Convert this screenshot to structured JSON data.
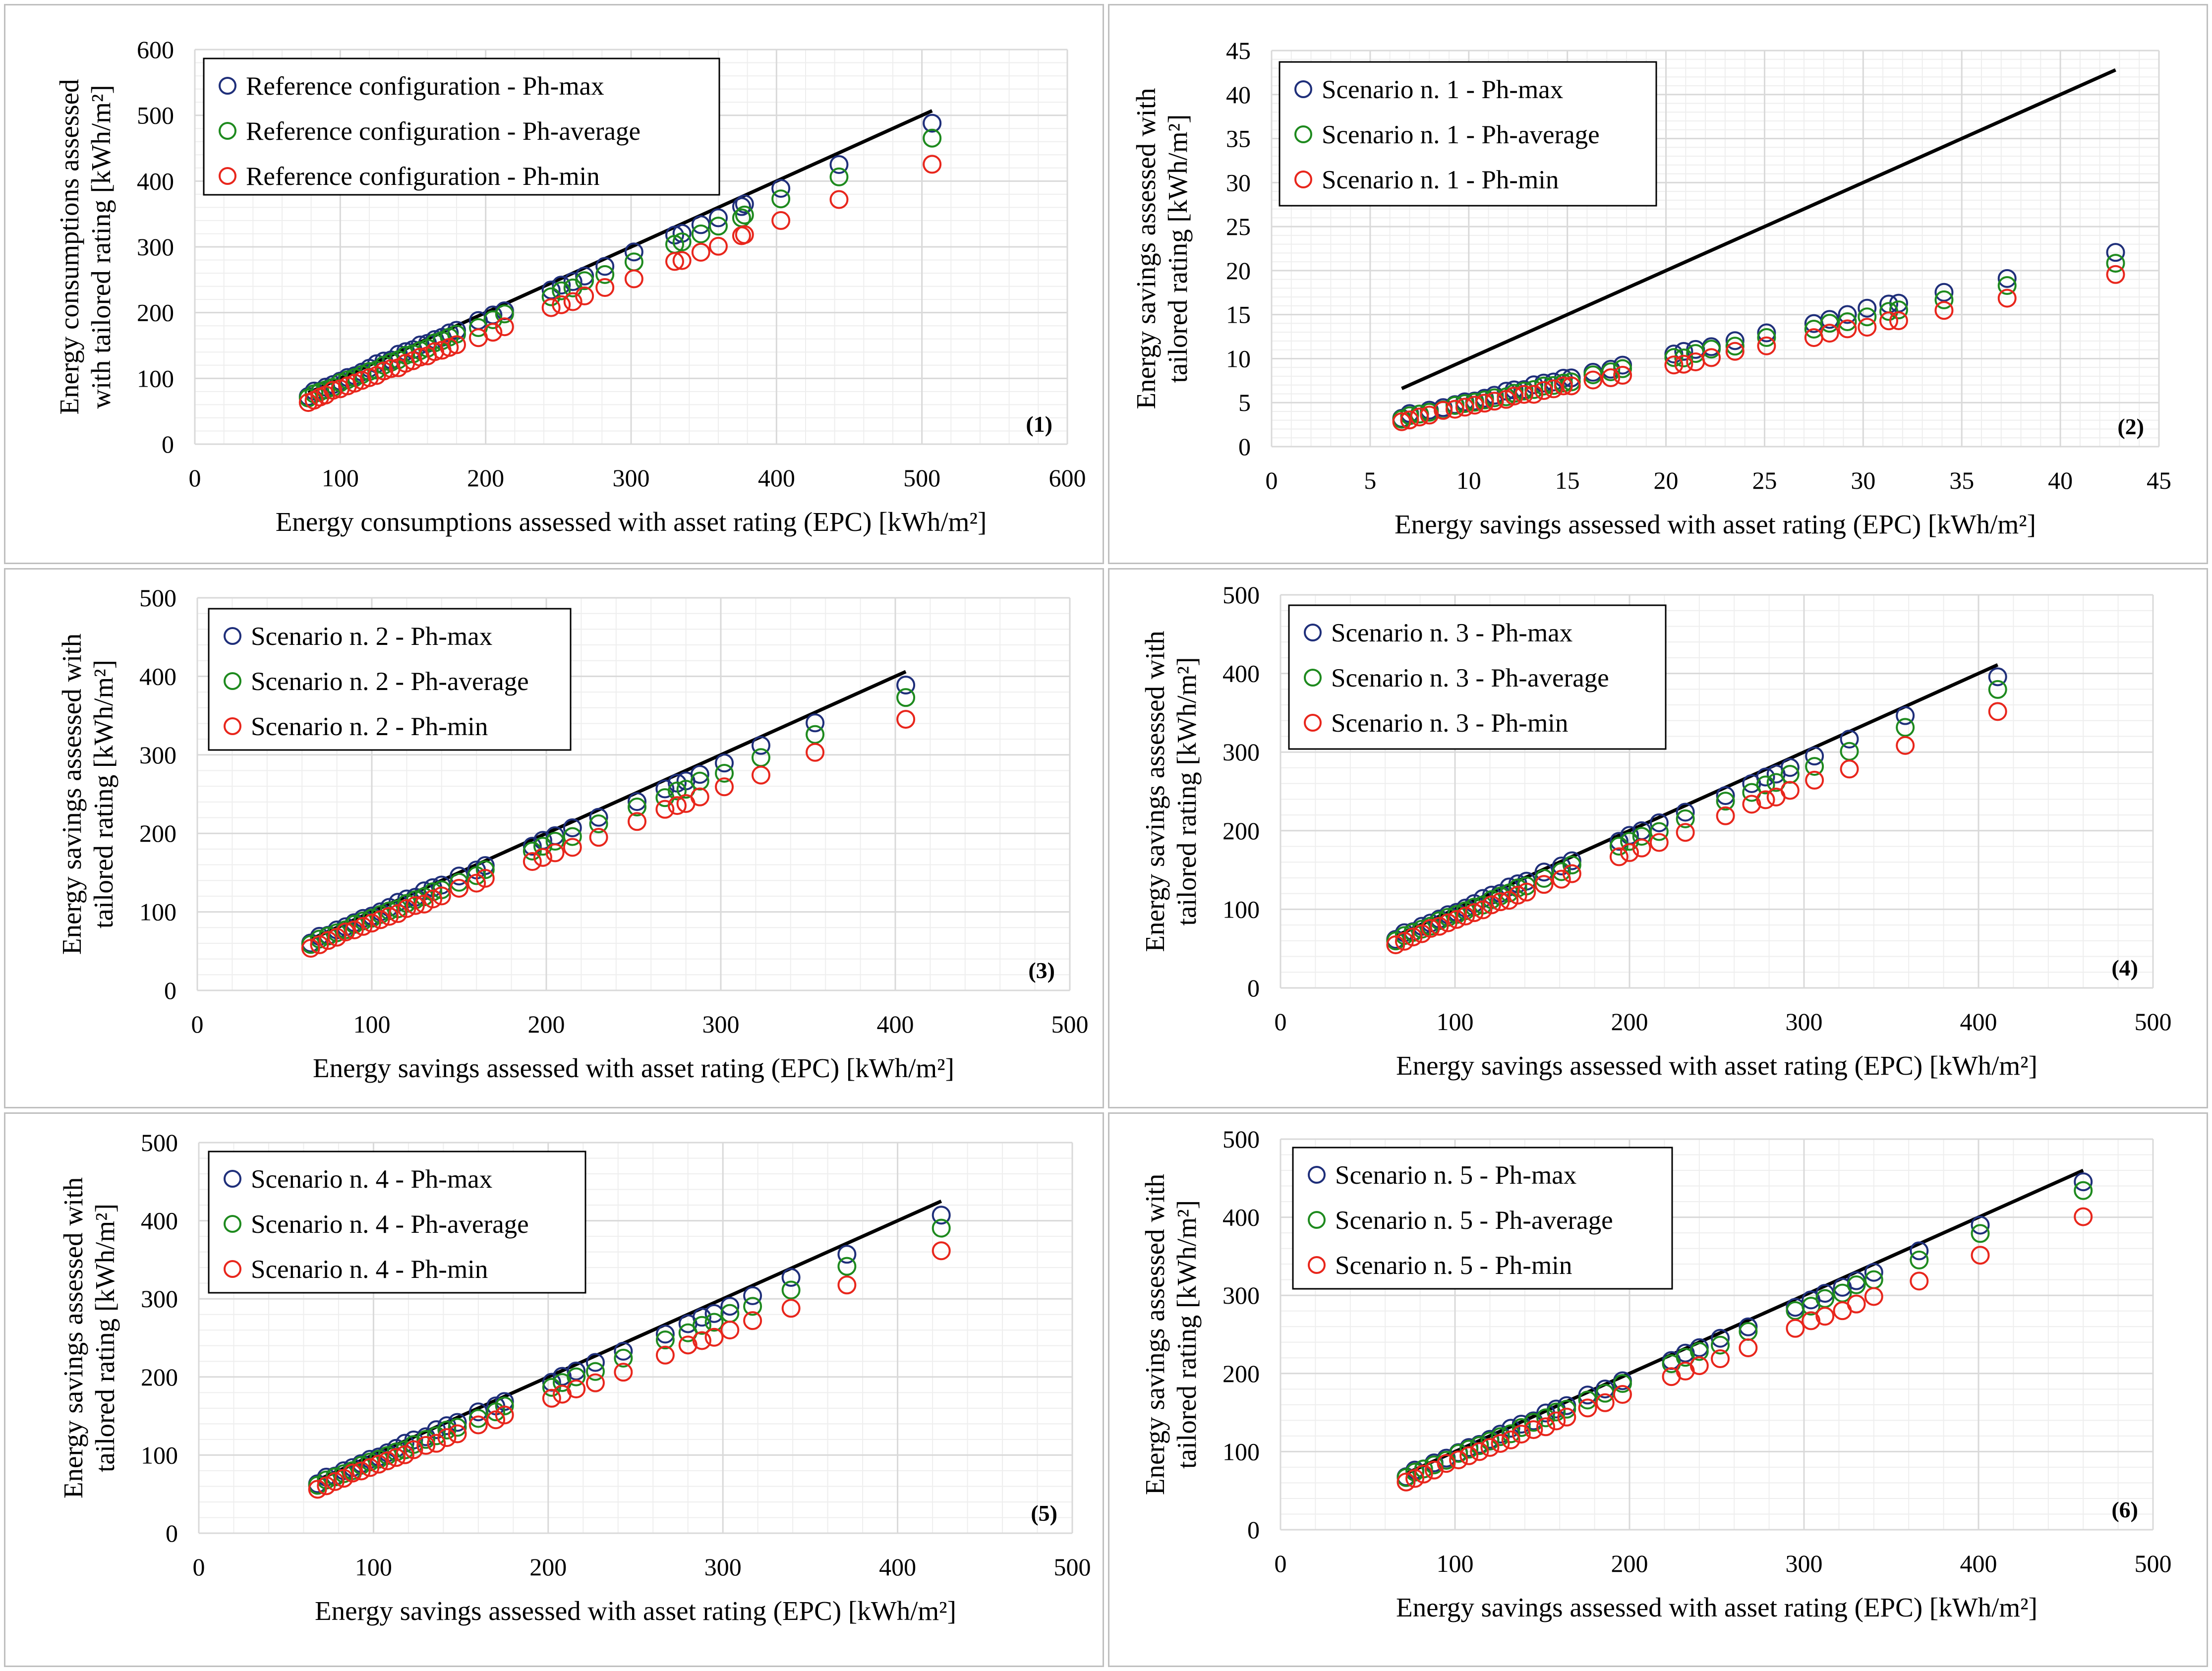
{
  "colors": {
    "max": "#1f2f7a",
    "avg": "#1e8a1e",
    "min": "#e8261c",
    "line": "#000000",
    "grid": "#d9d9d9",
    "minorgrid": "#eeeeee"
  },
  "chart_data": [
    {
      "type": "scatter",
      "id": "p1",
      "number": "(1)",
      "xlabel": "Energy consumptions assessed with asset rating (EPC) [kWh/m²]",
      "ylabel_lines": [
        "Energy consumptions assessed",
        "with tailored rating [kWh/m²]"
      ],
      "xlim": [
        0,
        600
      ],
      "ylim": [
        0,
        600
      ],
      "xticks": [
        0,
        100,
        200,
        300,
        400,
        500,
        600
      ],
      "yticks": [
        0,
        100,
        200,
        300,
        400,
        500,
        600
      ],
      "xtick_labels": [
        "0",
        "100",
        "200",
        "300",
        "400",
        "500",
        "600"
      ],
      "ytick_labels": [
        "0",
        "100",
        "200",
        "300",
        "400",
        "500",
        "600"
      ],
      "line": [
        [
          78,
          78
        ],
        [
          507,
          507
        ]
      ],
      "x": [
        78,
        82,
        86,
        90,
        95,
        100,
        105,
        110,
        115,
        120,
        125,
        130,
        135,
        140,
        145,
        150,
        155,
        160,
        165,
        170,
        175,
        180,
        195,
        205,
        213,
        245,
        252,
        260,
        268,
        282,
        302,
        330,
        335,
        348,
        360,
        376,
        378,
        403,
        443,
        507
      ],
      "series": [
        {
          "name": "Reference configuration -  Ph-max",
          "color_key": "max",
          "factor": 0.96
        },
        {
          "name": "Reference configuration -  Ph-average",
          "color_key": "avg",
          "factor": 0.92
        },
        {
          "name": "Reference configuration -  Ph-min",
          "color_key": "min",
          "factor": 0.84
        }
      ]
    },
    {
      "type": "scatter",
      "id": "p2",
      "number": "(2)",
      "xlabel": "Energy savings assessed with asset rating (EPC) [kWh/m²]",
      "ylabel_lines": [
        "Energy savings assessed with",
        "tailored rating [kWh/m²]"
      ],
      "xlim": [
        0,
        45
      ],
      "ylim": [
        0,
        45
      ],
      "xticks": [
        0,
        5,
        10,
        15,
        20,
        25,
        30,
        35,
        40,
        45
      ],
      "yticks": [
        0,
        5,
        10,
        15,
        20,
        25,
        30,
        35,
        40,
        45
      ],
      "xtick_labels": [
        "0",
        "5",
        "10",
        "15",
        "20",
        "25",
        "30",
        "35",
        "40",
        "45"
      ],
      "ytick_labels": [
        "0",
        "5",
        "10",
        "15",
        "20",
        "25",
        "30",
        "35",
        "40",
        "45"
      ],
      "line": [
        [
          6.6,
          6.6
        ],
        [
          42.8,
          42.8
        ]
      ],
      "x": [
        6.6,
        7.0,
        7.5,
        8.0,
        8.7,
        9.3,
        9.8,
        10.3,
        10.8,
        11.3,
        11.9,
        12.3,
        12.8,
        13.3,
        13.8,
        14.3,
        14.8,
        15.2,
        16.3,
        17.2,
        17.8,
        20.4,
        20.9,
        21.5,
        22.3,
        23.5,
        25.1,
        27.5,
        28.3,
        29.2,
        30.2,
        31.3,
        31.8,
        34.1,
        37.3,
        42.8
      ],
      "series": [
        {
          "name": "Scenario n. 1 -  Ph-max",
          "color_key": "max",
          "factor": 0.515
        },
        {
          "name": "Scenario n. 1 -  Ph-average",
          "color_key": "avg",
          "factor": 0.49
        },
        {
          "name": "Scenario n. 1 -  Ph-min",
          "color_key": "min",
          "factor": 0.455
        }
      ]
    },
    {
      "type": "scatter",
      "id": "p3",
      "number": "(3)",
      "xlabel": "Energy savings assessed with asset rating (EPC) [kWh/m²]",
      "ylabel_lines": [
        "Energy savings assessed with",
        "tailored rating [kWh/m²]"
      ],
      "xlim": [
        0,
        500
      ],
      "ylim": [
        0,
        500
      ],
      "xticks": [
        0,
        100,
        200,
        300,
        400,
        500
      ],
      "yticks": [
        0,
        100,
        200,
        300,
        400,
        500
      ],
      "xtick_labels": [
        "0",
        "100",
        "200",
        "300",
        "400",
        "500"
      ],
      "ytick_labels": [
        "0",
        "100",
        "200",
        "300",
        "400",
        "500"
      ],
      "line": [
        [
          65,
          65
        ],
        [
          406,
          406
        ]
      ],
      "x": [
        65,
        70,
        75,
        80,
        85,
        90,
        95,
        100,
        105,
        110,
        115,
        120,
        125,
        130,
        135,
        140,
        150,
        160,
        165,
        192,
        198,
        205,
        215,
        230,
        252,
        268,
        275,
        280,
        288,
        302,
        323,
        354,
        406
      ],
      "series": [
        {
          "name": "Scenario n. 2 -  Ph-max",
          "color_key": "max",
          "factor": 0.96
        },
        {
          "name": "Scenario n. 2 -  Ph-average",
          "color_key": "avg",
          "factor": 0.92
        },
        {
          "name": "Scenario n. 2 -  Ph-min",
          "color_key": "min",
          "factor": 0.855
        }
      ]
    },
    {
      "type": "scatter",
      "id": "p4",
      "number": "(4)",
      "xlabel": "Energy savings assessed with asset rating (EPC) [kWh/m²]",
      "ylabel_lines": [
        "Energy savings assessed with",
        "tailored rating [kWh/m²]"
      ],
      "xlim": [
        0,
        500
      ],
      "ylim": [
        0,
        500
      ],
      "xticks": [
        0,
        100,
        200,
        300,
        400,
        500
      ],
      "yticks": [
        0,
        100,
        200,
        300,
        400,
        500
      ],
      "xtick_labels": [
        "0",
        "100",
        "200",
        "300",
        "400",
        "500"
      ],
      "ytick_labels": [
        "0",
        "100",
        "200",
        "300",
        "400",
        "500"
      ],
      "line": [
        [
          66,
          66
        ],
        [
          411,
          411
        ]
      ],
      "x": [
        66,
        71,
        76,
        81,
        86,
        91,
        96,
        101,
        106,
        111,
        116,
        121,
        126,
        131,
        136,
        141,
        151,
        161,
        167,
        194,
        200,
        207,
        217,
        232,
        255,
        270,
        278,
        284,
        292,
        306,
        326,
        358,
        411
      ],
      "series": [
        {
          "name": "Scenario n. 3 -  Ph-max",
          "color_key": "max",
          "factor": 0.965
        },
        {
          "name": "Scenario n. 3 -  Ph-average",
          "color_key": "avg",
          "factor": 0.925
        },
        {
          "name": "Scenario n. 3 -  Ph-min",
          "color_key": "min",
          "factor": 0.86
        }
      ]
    },
    {
      "type": "scatter",
      "id": "p5",
      "number": "(5)",
      "xlabel": "Energy savings assessed with asset rating (EPC) [kWh/m²]",
      "ylabel_lines": [
        "Energy savings assessed with",
        "tailored rating [kWh/m²]"
      ],
      "xlim": [
        0,
        500
      ],
      "ylim": [
        0,
        500
      ],
      "xticks": [
        0,
        100,
        200,
        300,
        400,
        500
      ],
      "yticks": [
        0,
        100,
        200,
        300,
        400,
        500
      ],
      "xtick_labels": [
        "0",
        "100",
        "200",
        "300",
        "400",
        "500"
      ],
      "ytick_labels": [
        "0",
        "100",
        "200",
        "300",
        "400",
        "500"
      ],
      "line": [
        [
          68,
          68
        ],
        [
          425,
          425
        ]
      ],
      "x": [
        68,
        73,
        78,
        83,
        88,
        93,
        98,
        103,
        108,
        113,
        118,
        123,
        130,
        136,
        142,
        148,
        160,
        170,
        175,
        202,
        208,
        216,
        227,
        243,
        267,
        280,
        288,
        295,
        304,
        317,
        339,
        371,
        425
      ],
      "series": [
        {
          "name": "Scenario n. 4 -  Ph-max",
          "color_key": "max",
          "factor": 0.96
        },
        {
          "name": "Scenario n. 4 -  Ph-average",
          "color_key": "avg",
          "factor": 0.92
        },
        {
          "name": "Scenario n. 4 -  Ph-min",
          "color_key": "min",
          "factor": 0.855
        }
      ]
    },
    {
      "type": "scatter",
      "id": "p6",
      "number": "(6)",
      "xlabel": "Energy savings assessed with asset rating (EPC) [kWh/m²]",
      "ylabel_lines": [
        "Energy savings assessed with",
        "tailored rating [kWh/m²]"
      ],
      "xlim": [
        0,
        500
      ],
      "ylim": [
        0,
        500
      ],
      "xticks": [
        0,
        100,
        200,
        300,
        400,
        500
      ],
      "yticks": [
        0,
        100,
        200,
        300,
        400,
        500
      ],
      "xtick_labels": [
        "0",
        "100",
        "200",
        "300",
        "400",
        "500"
      ],
      "ytick_labels": [
        "0",
        "100",
        "200",
        "300",
        "400",
        "500"
      ],
      "line": [
        [
          72,
          72
        ],
        [
          460,
          460
        ]
      ],
      "x": [
        72,
        77,
        82,
        88,
        95,
        102,
        108,
        114,
        120,
        126,
        132,
        138,
        145,
        152,
        158,
        164,
        176,
        186,
        196,
        224,
        232,
        240,
        252,
        268,
        295,
        304,
        312,
        322,
        330,
        340,
        366,
        401,
        460
      ],
      "series": [
        {
          "name": "Scenario n. 5 -  Ph-max",
          "color_key": "max",
          "factor": 0.97
        },
        {
          "name": "Scenario n. 5 -  Ph-average",
          "color_key": "avg",
          "factor": 0.945
        },
        {
          "name": "Scenario n. 5 -  Ph-min",
          "color_key": "min",
          "factor": 0.875
        }
      ]
    }
  ]
}
